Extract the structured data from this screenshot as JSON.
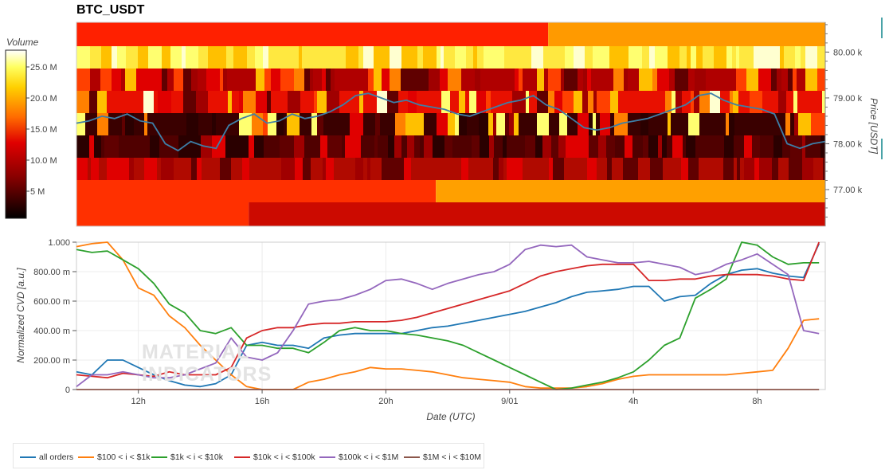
{
  "title": "BTC_USDT",
  "colorbar": {
    "label": "Volume",
    "ticks": [
      "25.0 M",
      "20.0 M",
      "15.0 M",
      "10.0 M",
      "5 M"
    ]
  },
  "heatmap": {
    "price_ticks": [
      "80.00 k",
      "79.00 k",
      "78.00 k",
      "77.00 k"
    ],
    "price_axis_label": "Price [USDT]"
  },
  "cvd": {
    "y_ticks": [
      "1.000",
      "800.00 m",
      "600.00 m",
      "400.00 m",
      "200.00 m",
      "0"
    ],
    "y_label": "Normalized CVD [a.u.]",
    "x_ticks": [
      "12h",
      "16h",
      "20h",
      "9/01",
      "4h",
      "8h"
    ],
    "x_label": "Date (UTC)"
  },
  "watermark": {
    "line1": "MATERIAL",
    "line2": "INDICATORS"
  },
  "legend": [
    {
      "label": "all orders",
      "color": "#1f77b4"
    },
    {
      "label": "$100 < i < $1k",
      "color": "#ff7f0e"
    },
    {
      "label": "$1k < i < $10k",
      "color": "#2ca02c"
    },
    {
      "label": "$10k < i < $100k",
      "color": "#d62728"
    },
    {
      "label": "$100k < i < $1M",
      "color": "#9467bd"
    },
    {
      "label": "$1M < i < $10M",
      "color": "#8c564b"
    }
  ],
  "chart_data": [
    {
      "type": "heatmap",
      "title": "BTC_USDT",
      "ylabel": "Price [USDT]",
      "colorbar_label": "Volume",
      "zlim": [
        0,
        28000000
      ],
      "price_levels": [
        80400,
        79900,
        79400,
        78900,
        78400,
        77900,
        77400,
        76900,
        76400
      ],
      "overlay_price_line": {
        "color": "#3d7fa8",
        "values": [
          78450,
          78500,
          78600,
          78550,
          78650,
          78500,
          78450,
          78000,
          77850,
          78050,
          77950,
          77900,
          78400,
          78550,
          78650,
          78450,
          78500,
          78650,
          78550,
          78600,
          78700,
          78850,
          79050,
          79100,
          79000,
          78900,
          78950,
          78850,
          78800,
          78750,
          78650,
          78600,
          78700,
          78800,
          78900,
          78950,
          79050,
          78850,
          78750,
          78550,
          78350,
          78300,
          78350,
          78450,
          78500,
          78550,
          78650,
          78750,
          78850,
          79050,
          79100,
          78950,
          78850,
          78800,
          78750,
          78650,
          78000,
          77900,
          78000,
          78050
        ]
      }
    },
    {
      "type": "line",
      "xlabel": "Date (UTC)",
      "ylabel": "Normalized CVD [a.u.]",
      "ylim": [
        0,
        1
      ],
      "x_hours": [
        10.0,
        10.5,
        11.0,
        11.5,
        12.0,
        12.5,
        13.0,
        13.5,
        14.0,
        14.5,
        15.0,
        15.5,
        16.0,
        16.5,
        17.0,
        17.5,
        18.0,
        18.5,
        19.0,
        19.5,
        20.0,
        20.5,
        21.0,
        21.5,
        22.0,
        22.5,
        23.0,
        23.5,
        24.0,
        24.5,
        25.0,
        25.5,
        26.0,
        26.5,
        27.0,
        27.5,
        28.0,
        28.5,
        29.0,
        29.5,
        30.0,
        30.5,
        31.0,
        31.5,
        32.0,
        32.5,
        33.0,
        33.5,
        34.0
      ],
      "series": [
        {
          "name": "all orders",
          "color": "#1f77b4",
          "values": [
            0.12,
            0.1,
            0.2,
            0.2,
            0.15,
            0.1,
            0.06,
            0.03,
            0.02,
            0.04,
            0.1,
            0.3,
            0.32,
            0.3,
            0.3,
            0.28,
            0.35,
            0.37,
            0.38,
            0.38,
            0.38,
            0.38,
            0.4,
            0.42,
            0.43,
            0.45,
            0.47,
            0.49,
            0.51,
            0.53,
            0.56,
            0.59,
            0.63,
            0.66,
            0.67,
            0.68,
            0.7,
            0.7,
            0.6,
            0.63,
            0.64,
            0.72,
            0.78,
            0.81,
            0.82,
            0.79,
            0.77,
            0.76,
            0.99
          ]
        },
        {
          "name": "$100 < i < $1k",
          "color": "#ff7f0e",
          "values": [
            0.97,
            0.99,
            1.0,
            0.88,
            0.69,
            0.64,
            0.5,
            0.42,
            0.3,
            0.2,
            0.1,
            0.02,
            0.0,
            0.0,
            0.0,
            0.05,
            0.07,
            0.1,
            0.12,
            0.15,
            0.14,
            0.14,
            0.13,
            0.12,
            0.1,
            0.08,
            0.07,
            0.06,
            0.05,
            0.02,
            0.01,
            0.01,
            0.01,
            0.02,
            0.04,
            0.07,
            0.09,
            0.1,
            0.1,
            0.1,
            0.1,
            0.1,
            0.1,
            0.11,
            0.12,
            0.13,
            0.28,
            0.47,
            0.48
          ]
        },
        {
          "name": "$1k < i < $10k",
          "color": "#2ca02c",
          "values": [
            0.95,
            0.93,
            0.94,
            0.88,
            0.82,
            0.72,
            0.58,
            0.52,
            0.4,
            0.38,
            0.42,
            0.3,
            0.3,
            0.28,
            0.28,
            0.25,
            0.32,
            0.4,
            0.42,
            0.4,
            0.4,
            0.38,
            0.37,
            0.35,
            0.33,
            0.3,
            0.25,
            0.2,
            0.15,
            0.1,
            0.05,
            0.0,
            0.01,
            0.03,
            0.05,
            0.08,
            0.12,
            0.2,
            0.3,
            0.35,
            0.62,
            0.68,
            0.75,
            1.0,
            0.98,
            0.9,
            0.85,
            0.86,
            0.86
          ]
        },
        {
          "name": "$10k < i < $100k",
          "color": "#d62728",
          "values": [
            0.1,
            0.09,
            0.08,
            0.11,
            0.1,
            0.09,
            0.12,
            0.1,
            0.1,
            0.1,
            0.15,
            0.35,
            0.4,
            0.42,
            0.42,
            0.44,
            0.45,
            0.45,
            0.46,
            0.46,
            0.46,
            0.47,
            0.49,
            0.52,
            0.55,
            0.58,
            0.61,
            0.64,
            0.67,
            0.72,
            0.77,
            0.8,
            0.82,
            0.84,
            0.85,
            0.85,
            0.85,
            0.74,
            0.74,
            0.75,
            0.75,
            0.77,
            0.78,
            0.78,
            0.78,
            0.77,
            0.75,
            0.74,
            1.0
          ]
        },
        {
          "name": "$100k < i < $1M",
          "color": "#9467bd",
          "values": [
            0.02,
            0.1,
            0.1,
            0.12,
            0.1,
            0.08,
            0.08,
            0.1,
            0.14,
            0.18,
            0.35,
            0.22,
            0.2,
            0.25,
            0.4,
            0.58,
            0.6,
            0.61,
            0.64,
            0.68,
            0.74,
            0.75,
            0.72,
            0.68,
            0.72,
            0.75,
            0.78,
            0.8,
            0.85,
            0.95,
            0.98,
            0.97,
            0.98,
            0.9,
            0.88,
            0.86,
            0.86,
            0.87,
            0.85,
            0.83,
            0.78,
            0.8,
            0.85,
            0.88,
            0.92,
            0.85,
            0.78,
            0.4,
            0.38
          ]
        },
        {
          "name": "$1M < i < $10M",
          "color": "#8c564b",
          "values": [
            0.0,
            0.0,
            0.0,
            0.0,
            0.0,
            0.0,
            0.0,
            0.0,
            0.0,
            0.0,
            0.0,
            0.0,
            0.0,
            0.0,
            0.0,
            0.0,
            0.0,
            0.0,
            0.0,
            0.0,
            0.0,
            0.0,
            0.0,
            0.0,
            0.0,
            0.0,
            0.0,
            0.0,
            0.0,
            0.0,
            0.0,
            0.0,
            0.0,
            0.0,
            0.0,
            0.0,
            0.0,
            0.0,
            0.0,
            0.0,
            0.0,
            0.0,
            0.0,
            0.0,
            0.0,
            0.0,
            0.0,
            0.0,
            0.0
          ]
        }
      ]
    }
  ]
}
